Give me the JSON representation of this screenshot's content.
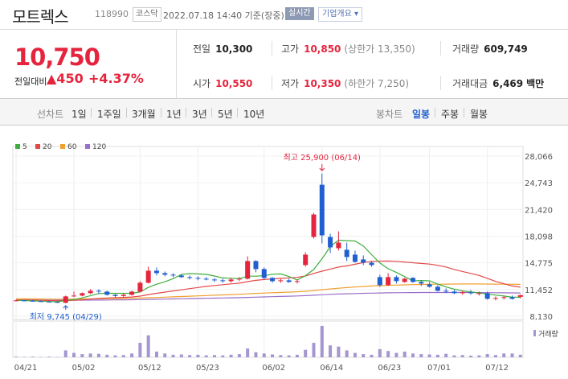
{
  "header": {
    "stock_name": "모트렉스",
    "stock_code": "118990",
    "market": "코스닥",
    "datetime": "2022.07.18 14:40 기준(장중)",
    "realtime_button": "실시간",
    "company_info_button": "기업개요 ▾"
  },
  "price": {
    "current": "10,750",
    "change_label": "전일대비",
    "change": "▲450",
    "change_pct": "+4.37%"
  },
  "quotes": {
    "prev_close": {
      "label": "전일",
      "value": "10,300"
    },
    "high": {
      "label": "고가",
      "value": "10,850",
      "limit_label": "(상한가 13,350)"
    },
    "volume": {
      "label": "거래량",
      "value": "609,749"
    },
    "open": {
      "label": "시가",
      "value": "10,550"
    },
    "low": {
      "label": "저가",
      "value": "10,350",
      "limit_label": "(하한가 7,250)"
    },
    "turnover": {
      "label": "거래대금",
      "value": "6,469",
      "unit": "백만"
    }
  },
  "chart_tabs": {
    "period_label": "선차트",
    "periods": [
      "1일",
      "1주일",
      "3개월",
      "1년",
      "3년",
      "5년",
      "10년"
    ],
    "candle_label": "봉차트",
    "candles": [
      "일봉",
      "주봉",
      "월봉"
    ],
    "active_candle": "일봉"
  },
  "colors": {
    "up": "#e5253d",
    "down": "#1f5fd0",
    "ma5": "#3fae3f",
    "ma20": "#e24a4a",
    "ma60": "#f0a030",
    "ma120": "#9a6fc8",
    "volume": "#a595d1"
  },
  "chart_data": {
    "type": "candlestick",
    "legend": [
      "5",
      "20",
      "60",
      "120"
    ],
    "y_ticks": [
      "28,066",
      "24,743",
      "21,420",
      "18,098",
      "14,775",
      "11,452",
      "8,130"
    ],
    "ylim": [
      8130,
      28066
    ],
    "x_ticks": [
      {
        "label": "04/21",
        "i": 0
      },
      {
        "label": "05/02",
        "i": 7
      },
      {
        "label": "05/12",
        "i": 15
      },
      {
        "label": "05/23",
        "i": 22
      },
      {
        "label": "06/02",
        "i": 30
      },
      {
        "label": "06/14",
        "i": 37
      },
      {
        "label": "06/23",
        "i": 44
      },
      {
        "label": "07/01",
        "i": 50
      },
      {
        "label": "07/12",
        "i": 57
      }
    ],
    "volume_label": "거래량",
    "max_label": "최고 25,900 (06/14)",
    "min_label": "최저 9,745 (04/29)",
    "candles": [
      {
        "o": 10100,
        "h": 10200,
        "l": 10000,
        "c": 10100,
        "v": 2
      },
      {
        "o": 10100,
        "h": 10150,
        "l": 10000,
        "c": 10050,
        "v": 1
      },
      {
        "o": 10050,
        "h": 10150,
        "l": 9950,
        "c": 10000,
        "v": 2
      },
      {
        "o": 10000,
        "h": 10100,
        "l": 9900,
        "c": 9950,
        "v": 1
      },
      {
        "o": 9950,
        "h": 10050,
        "l": 9850,
        "c": 9900,
        "v": 2
      },
      {
        "o": 9900,
        "h": 10000,
        "l": 9800,
        "c": 9850,
        "v": 1
      },
      {
        "o": 9800,
        "h": 10700,
        "l": 9745,
        "c": 10600,
        "v": 22
      },
      {
        "o": 10600,
        "h": 11200,
        "l": 10500,
        "c": 10700,
        "v": 14
      },
      {
        "o": 10700,
        "h": 11100,
        "l": 10600,
        "c": 11000,
        "v": 10
      },
      {
        "o": 11000,
        "h": 11500,
        "l": 10900,
        "c": 11300,
        "v": 12
      },
      {
        "o": 11300,
        "h": 11500,
        "l": 10900,
        "c": 11200,
        "v": 11
      },
      {
        "o": 11200,
        "h": 11300,
        "l": 10700,
        "c": 10800,
        "v": 8
      },
      {
        "o": 10800,
        "h": 10900,
        "l": 10500,
        "c": 10650,
        "v": 6
      },
      {
        "o": 10650,
        "h": 11000,
        "l": 10500,
        "c": 10800,
        "v": 7
      },
      {
        "o": 10800,
        "h": 11300,
        "l": 10700,
        "c": 11200,
        "v": 12
      },
      {
        "o": 11200,
        "h": 12500,
        "l": 11100,
        "c": 12300,
        "v": 46
      },
      {
        "o": 12300,
        "h": 14300,
        "l": 12200,
        "c": 13800,
        "v": 70
      },
      {
        "o": 13800,
        "h": 14200,
        "l": 13200,
        "c": 13500,
        "v": 18
      },
      {
        "o": 13500,
        "h": 13700,
        "l": 13100,
        "c": 13300,
        "v": 12
      },
      {
        "o": 13300,
        "h": 13500,
        "l": 13000,
        "c": 13200,
        "v": 8
      },
      {
        "o": 13200,
        "h": 13400,
        "l": 12900,
        "c": 13000,
        "v": 9
      },
      {
        "o": 13000,
        "h": 13200,
        "l": 12700,
        "c": 12900,
        "v": 7
      },
      {
        "o": 12900,
        "h": 13100,
        "l": 12600,
        "c": 12800,
        "v": 8
      },
      {
        "o": 12800,
        "h": 13000,
        "l": 12600,
        "c": 12700,
        "v": 6
      },
      {
        "o": 12700,
        "h": 12900,
        "l": 12400,
        "c": 12600,
        "v": 7
      },
      {
        "o": 12600,
        "h": 12800,
        "l": 12300,
        "c": 12500,
        "v": 6
      },
      {
        "o": 12500,
        "h": 12900,
        "l": 12300,
        "c": 12700,
        "v": 8
      },
      {
        "o": 12700,
        "h": 13000,
        "l": 12500,
        "c": 12800,
        "v": 10
      },
      {
        "o": 12800,
        "h": 15600,
        "l": 12700,
        "c": 15000,
        "v": 28
      },
      {
        "o": 15000,
        "h": 15100,
        "l": 13600,
        "c": 14000,
        "v": 16
      },
      {
        "o": 14000,
        "h": 14200,
        "l": 12700,
        "c": 12900,
        "v": 12
      },
      {
        "o": 12900,
        "h": 13000,
        "l": 12300,
        "c": 12500,
        "v": 9
      },
      {
        "o": 12500,
        "h": 12800,
        "l": 12300,
        "c": 12600,
        "v": 7
      },
      {
        "o": 12600,
        "h": 12800,
        "l": 12300,
        "c": 12400,
        "v": 6
      },
      {
        "o": 12400,
        "h": 12700,
        "l": 12200,
        "c": 12500,
        "v": 8
      },
      {
        "o": 14500,
        "h": 16100,
        "l": 14300,
        "c": 15800,
        "v": 24
      },
      {
        "o": 18000,
        "h": 21000,
        "l": 17800,
        "c": 20800,
        "v": 46
      },
      {
        "o": 24500,
        "h": 25900,
        "l": 17200,
        "c": 18200,
        "v": 100
      },
      {
        "o": 18000,
        "h": 18400,
        "l": 16000,
        "c": 16700,
        "v": 38
      },
      {
        "o": 16600,
        "h": 18700,
        "l": 16300,
        "c": 17300,
        "v": 34
      },
      {
        "o": 16400,
        "h": 17300,
        "l": 15000,
        "c": 15500,
        "v": 22
      },
      {
        "o": 15800,
        "h": 16300,
        "l": 14800,
        "c": 14900,
        "v": 14
      },
      {
        "o": 15200,
        "h": 15700,
        "l": 14500,
        "c": 14800,
        "v": 10
      },
      {
        "o": 14800,
        "h": 15000,
        "l": 14300,
        "c": 14500,
        "v": 8
      },
      {
        "o": 13000,
        "h": 13300,
        "l": 11800,
        "c": 12000,
        "v": 26
      },
      {
        "o": 12000,
        "h": 13500,
        "l": 11900,
        "c": 13000,
        "v": 20
      },
      {
        "o": 13000,
        "h": 13200,
        "l": 12200,
        "c": 12500,
        "v": 14
      },
      {
        "o": 12400,
        "h": 12900,
        "l": 12300,
        "c": 12800,
        "v": 18
      },
      {
        "o": 12900,
        "h": 13000,
        "l": 12300,
        "c": 12400,
        "v": 12
      },
      {
        "o": 12400,
        "h": 12600,
        "l": 11900,
        "c": 12200,
        "v": 10
      },
      {
        "o": 12100,
        "h": 12400,
        "l": 11700,
        "c": 11800,
        "v": 9
      },
      {
        "o": 11800,
        "h": 12000,
        "l": 11200,
        "c": 11300,
        "v": 8
      },
      {
        "o": 11300,
        "h": 11600,
        "l": 11000,
        "c": 11200,
        "v": 11
      },
      {
        "o": 11200,
        "h": 11400,
        "l": 10900,
        "c": 11000,
        "v": 6
      },
      {
        "o": 11000,
        "h": 11300,
        "l": 10800,
        "c": 11100,
        "v": 7
      },
      {
        "o": 11100,
        "h": 11400,
        "l": 10800,
        "c": 11000,
        "v": 5
      },
      {
        "o": 11000,
        "h": 11200,
        "l": 10700,
        "c": 11000,
        "v": 6
      },
      {
        "o": 11000,
        "h": 11200,
        "l": 10200,
        "c": 10300,
        "v": 10
      },
      {
        "o": 10300,
        "h": 10600,
        "l": 10100,
        "c": 10400,
        "v": 7
      },
      {
        "o": 10400,
        "h": 10700,
        "l": 10200,
        "c": 10500,
        "v": 12
      },
      {
        "o": 10500,
        "h": 10700,
        "l": 10200,
        "c": 10300,
        "v": 12
      },
      {
        "o": 10550,
        "h": 10850,
        "l": 10350,
        "c": 10750,
        "v": 8
      }
    ],
    "ma5": [
      10100,
      10080,
      10040,
      10000,
      9960,
      9920,
      10090,
      10210,
      10410,
      10690,
      10960,
      11000,
      10990,
      10990,
      10990,
      11150,
      11730,
      12120,
      12420,
      12820,
      13320,
      13440,
      13400,
      13340,
      13140,
      12900,
      12860,
      12800,
      13120,
      13120,
      13180,
      13360,
      13400,
      13080,
      12640,
      13180,
      13950,
      15280,
      16800,
      17600,
      17540,
      17500,
      16880,
      15790,
      14760,
      14040,
      13580,
      13060,
      12540,
      12580,
      12540,
      12140,
      11780,
      11500,
      11290,
      11160,
      11060,
      10880,
      10760,
      10640,
      10500,
      10490
    ],
    "ma20": [
      10150,
      10140,
      10130,
      10110,
      10080,
      10050,
      10080,
      10110,
      10170,
      10260,
      10340,
      10400,
      10430,
      10470,
      10520,
      10630,
      10820,
      10990,
      11140,
      11280,
      11420,
      11570,
      11710,
      11850,
      11960,
      12060,
      12160,
      12250,
      12440,
      12600,
      12700,
      12780,
      12840,
      12910,
      12970,
      13140,
      13460,
      13740,
      14000,
      14250,
      14400,
      14600,
      14810,
      14960,
      14990,
      15000,
      14960,
      14880,
      14790,
      14700,
      14620,
      14470,
      14260,
      13950,
      13700,
      13460,
      13210,
      12850,
      12470,
      12180,
      11900,
      11750
    ],
    "ma60": [
      10300,
      10290,
      10280,
      10270,
      10260,
      10250,
      10250,
      10260,
      10270,
      10280,
      10300,
      10320,
      10330,
      10340,
      10360,
      10390,
      10430,
      10460,
      10500,
      10540,
      10580,
      10620,
      10660,
      10700,
      10740,
      10780,
      10820,
      10860,
      10920,
      10980,
      11020,
      11060,
      11100,
      11140,
      11180,
      11240,
      11330,
      11440,
      11530,
      11620,
      11700,
      11770,
      11840,
      11900,
      11940,
      11980,
      12010,
      12040,
      12070,
      12090,
      12110,
      12120,
      12130,
      12140,
      12150,
      12150,
      12150,
      12140,
      12130,
      12120,
      12110,
      12100
    ],
    "ma120": [
      10150,
      10150,
      10145,
      10140,
      10135,
      10130,
      10130,
      10130,
      10135,
      10140,
      10145,
      10150,
      10160,
      10170,
      10180,
      10200,
      10220,
      10240,
      10260,
      10280,
      10300,
      10320,
      10340,
      10360,
      10380,
      10400,
      10420,
      10440,
      10470,
      10500,
      10530,
      10560,
      10590,
      10620,
      10650,
      10690,
      10740,
      10800,
      10850,
      10890,
      10930,
      10960,
      10990,
      11010,
      11030,
      11050,
      11060,
      11070,
      11080,
      11090,
      11090,
      11090,
      11090,
      11090,
      11090,
      11080,
      11080,
      11070,
      11060,
      11050,
      11040,
      11030
    ]
  }
}
